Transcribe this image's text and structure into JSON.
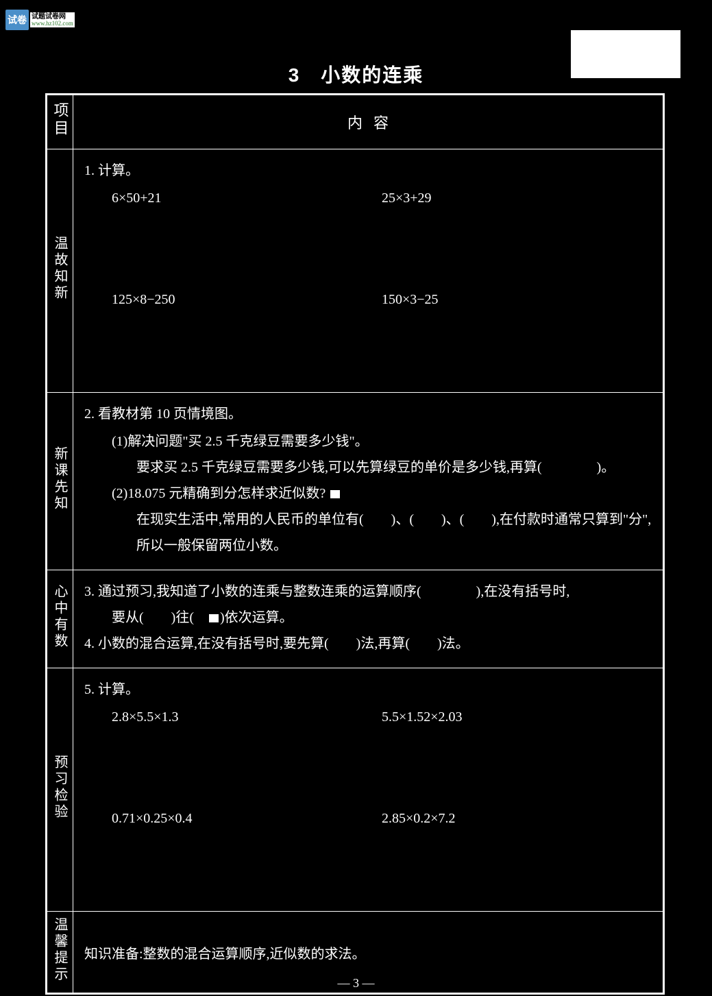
{
  "logo": {
    "box_text": "试卷",
    "cn": "试题试卷网",
    "url": "www.hz102.com"
  },
  "title": "3　小数的连乘",
  "header": {
    "col1": "项目",
    "col2_a": "内",
    "col2_b": "容"
  },
  "section1": {
    "label": "温故知新",
    "q1_title": "1. 计算。",
    "calc": {
      "a1": "6×50+21",
      "a2": "25×3+29",
      "b1": "125×8−250",
      "b2": "150×3−25"
    }
  },
  "section2": {
    "label": "新课先知",
    "q2_title": "2. 看教材第 10 页情境图。",
    "q2_1": "(1)解决问题\"买 2.5 千克绿豆需要多少钱\"。",
    "q2_1_text": "要求买 2.5 千克绿豆需要多少钱,可以先算绿豆的单价是多少钱,再算(　　　　)。",
    "q2_2": "(2)18.075 元精确到分怎样求近似数?",
    "q2_2_text": "在现实生活中,常用的人民币的单位有(　　)、(　　)、(　　),在付款时通常只算到\"分\",所以一般保留两位小数。"
  },
  "section3": {
    "label": "心中有数",
    "q3_text_a": "3. 通过预习,我知道了小数的连乘与整数连乘的运算顺序(　　　　),在没有括号时,",
    "q3_text_b": "要从(　　)往(　",
    "q3_text_c": ")依次运算。",
    "q4_text": "4. 小数的混合运算,在没有括号时,要先算(　　)法,再算(　　)法。"
  },
  "section4": {
    "label": "预习检验",
    "q5_title": "5. 计算。",
    "calc": {
      "a1": "2.8×5.5×1.3",
      "a2": "5.5×1.52×2.03",
      "b1": "0.71×0.25×0.4",
      "b2": "2.85×0.2×7.2"
    }
  },
  "section5": {
    "label": "温馨提示",
    "text": "知识准备:整数的混合运算顺序,近似数的求法。"
  },
  "page_num": "—  3  —",
  "colors": {
    "background": "#000000",
    "text": "#ffffff",
    "border": "#ffffff",
    "logo_bg": "#4a8fc9"
  }
}
